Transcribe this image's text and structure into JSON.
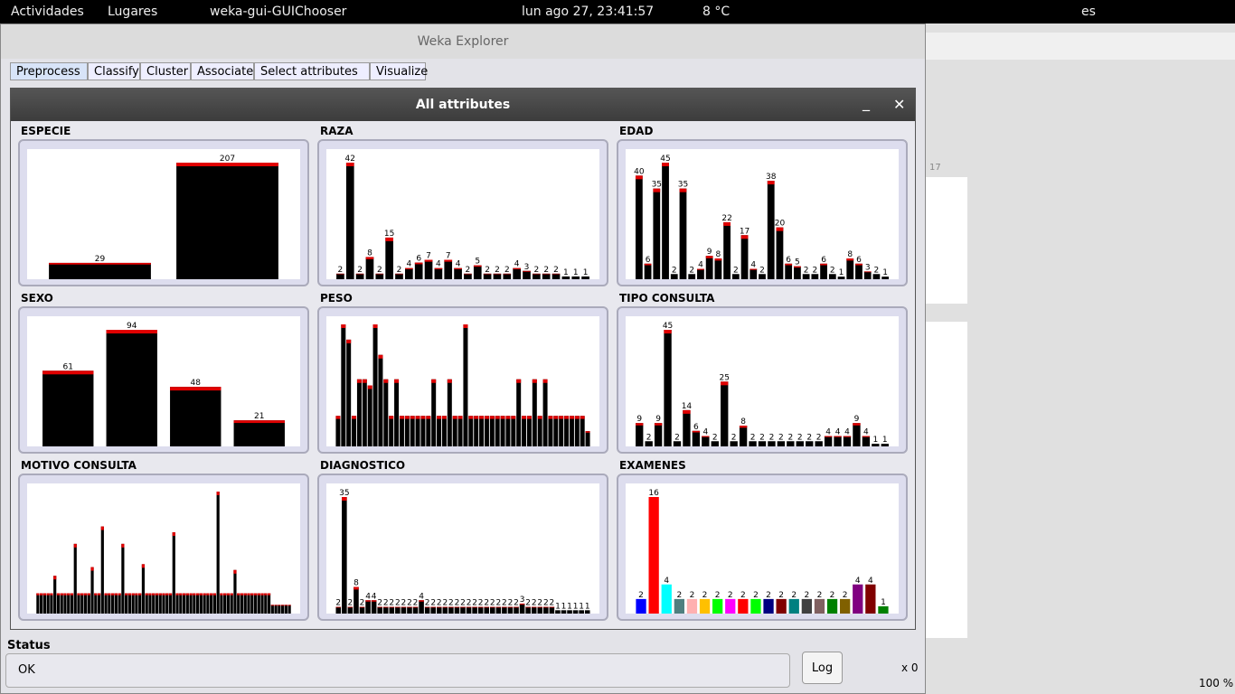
{
  "topbar": {
    "activities": "Actividades",
    "places": "Lugares",
    "app": "weka-gui-GUIChooser",
    "clock": "lun ago 27, 23:41:57",
    "weather": "8 °C",
    "lang": "es"
  },
  "window": {
    "title": "Weka Explorer",
    "tabs": [
      "Preprocess",
      "Classify",
      "Cluster",
      "Associate",
      "Select attributes",
      "Visualize"
    ]
  },
  "dialog": {
    "title": "All attributes",
    "panels": [
      {
        "name": "ESPECIE",
        "labels": true,
        "values": [
          29,
          207
        ]
      },
      {
        "name": "RAZA",
        "labels": true,
        "values": [
          2,
          42,
          2,
          8,
          2,
          15,
          2,
          4,
          6,
          7,
          4,
          7,
          4,
          2,
          5,
          2,
          2,
          2,
          4,
          3,
          2,
          2,
          2,
          1,
          1,
          1
        ]
      },
      {
        "name": "EDAD",
        "labels": true,
        "values": [
          40,
          6,
          35,
          45,
          2,
          35,
          2,
          4,
          9,
          8,
          22,
          2,
          17,
          4,
          2,
          38,
          20,
          6,
          5,
          2,
          2,
          6,
          2,
          1,
          8,
          6,
          3,
          2,
          1
        ]
      },
      {
        "name": "SEXO",
        "labels": true,
        "values": [
          61,
          94,
          48,
          21
        ]
      },
      {
        "name": "PESO",
        "labels": false,
        "values": [
          10,
          40,
          35,
          10,
          22,
          22,
          20,
          40,
          30,
          22,
          10,
          22,
          10,
          10,
          10,
          10,
          10,
          10,
          22,
          10,
          10,
          22,
          10,
          10,
          40,
          10,
          10,
          10,
          10,
          10,
          10,
          10,
          10,
          10,
          22,
          10,
          10,
          22,
          10,
          22,
          10,
          10,
          10,
          10,
          10,
          10,
          10,
          5
        ]
      },
      {
        "name": "TIPO CONSULTA",
        "labels": true,
        "values": [
          9,
          2,
          9,
          45,
          2,
          14,
          6,
          4,
          2,
          25,
          2,
          8,
          2,
          2,
          2,
          2,
          2,
          2,
          2,
          2,
          4,
          4,
          4,
          9,
          4,
          1,
          1
        ]
      },
      {
        "name": "MOTIVO CONSULTA",
        "labels": false,
        "values": [
          7,
          7,
          7,
          7,
          7,
          13,
          7,
          7,
          7,
          7,
          7,
          24,
          7,
          7,
          7,
          7,
          16,
          7,
          7,
          30,
          7,
          7,
          7,
          7,
          7,
          24,
          7,
          7,
          7,
          7,
          7,
          17,
          7,
          7,
          7,
          7,
          7,
          7,
          7,
          7,
          28,
          7,
          7,
          7,
          7,
          7,
          7,
          7,
          7,
          7,
          7,
          7,
          7,
          42,
          7,
          7,
          7,
          7,
          15,
          7,
          7,
          7,
          7,
          7,
          7,
          7,
          7,
          7,
          7,
          3,
          3,
          3,
          3,
          3,
          3
        ]
      },
      {
        "name": "DIAGNOSTICO",
        "labels": true,
        "values": [
          2,
          35,
          2,
          8,
          2,
          4,
          4,
          2,
          2,
          2,
          2,
          2,
          2,
          2,
          4,
          2,
          2,
          2,
          2,
          2,
          2,
          2,
          2,
          2,
          2,
          2,
          2,
          2,
          2,
          2,
          2,
          3,
          2,
          2,
          2,
          2,
          2,
          1,
          1,
          1,
          1,
          1,
          1
        ]
      },
      {
        "name": "EXAMENES",
        "labels": true,
        "values": [
          2,
          16,
          4,
          2,
          2,
          2,
          2,
          2,
          2,
          2,
          2,
          2,
          2,
          2,
          2,
          2,
          2,
          4,
          4,
          1
        ],
        "colors": [
          "#0000ff",
          "#ff0000",
          "#00ffff",
          "#4f7f7f",
          "#ffb0b0",
          "#ffc000",
          "#00ff00",
          "#ff00ff",
          "#ff0000",
          "#00ff00",
          "#000080",
          "#800000",
          "#008080",
          "#404040",
          "#806060",
          "#008000",
          "#806000",
          "#800080",
          "#800000",
          "#008000"
        ]
      }
    ]
  },
  "status": {
    "label": "Status",
    "text": "OK",
    "log": "Log",
    "count": "x 0"
  },
  "right": {
    "ruler": "17",
    "zoom": "100 %"
  }
}
